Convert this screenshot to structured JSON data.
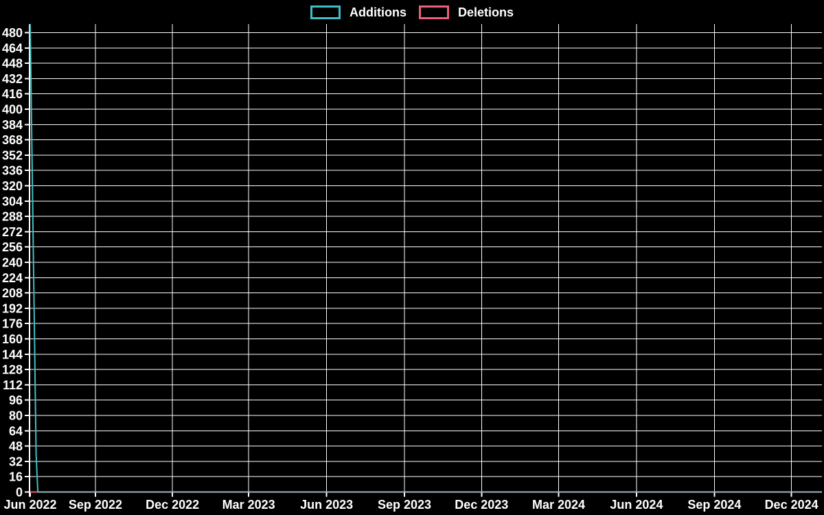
{
  "chart_data": {
    "type": "line",
    "title": "",
    "background_color": "#000000",
    "grid_color": "#ffffff",
    "text_color": "#ffffff",
    "grid": true,
    "legend": {
      "position": "top-center",
      "entries": [
        {
          "label": "Additions",
          "color": "#41bfc6"
        },
        {
          "label": "Deletions",
          "color": "#ef5f7a"
        }
      ]
    },
    "x_axis": {
      "unit": "date",
      "start": "2022-06-16",
      "end": "2025-01-06",
      "ticks": [
        {
          "label": "Jun 2022",
          "date": "2022-06-16"
        },
        {
          "label": "Sep 2022",
          "date": "2022-09-01"
        },
        {
          "label": "Dec 2022",
          "date": "2022-12-01"
        },
        {
          "label": "Mar 2023",
          "date": "2023-03-01"
        },
        {
          "label": "Jun 2023",
          "date": "2023-06-01"
        },
        {
          "label": "Sep 2023",
          "date": "2023-09-01"
        },
        {
          "label": "Dec 2023",
          "date": "2023-12-01"
        },
        {
          "label": "Mar 2024",
          "date": "2024-03-01"
        },
        {
          "label": "Jun 2024",
          "date": "2024-06-01"
        },
        {
          "label": "Sep 2024",
          "date": "2024-09-01"
        },
        {
          "label": "Dec 2024",
          "date": "2024-12-01"
        }
      ]
    },
    "y_axis": {
      "min": 0,
      "max": 489,
      "tick_step": 16,
      "tick_values": [
        0,
        16,
        32,
        48,
        64,
        80,
        96,
        112,
        128,
        144,
        160,
        176,
        192,
        208,
        224,
        240,
        256,
        272,
        288,
        304,
        320,
        336,
        352,
        368,
        384,
        400,
        416,
        432,
        448,
        464,
        480
      ]
    },
    "series": [
      {
        "name": "Additions",
        "color": "#41bfc6",
        "points": [
          [
            "2022-06-16",
            489
          ],
          [
            "2022-06-23",
            39
          ],
          [
            "2022-06-25",
            0
          ],
          [
            "2025-01-06",
            0
          ]
        ]
      },
      {
        "name": "Deletions",
        "color": "#ef5f7a",
        "points": [
          [
            "2022-06-16",
            0
          ],
          [
            "2025-01-06",
            0
          ]
        ]
      }
    ],
    "overlap_zero_line": {
      "from": "2022-06-25",
      "color": "#9fbcc4",
      "note": "where Additions and Deletions both sit at 0 the lines overlap into a pale blue-grey"
    }
  }
}
